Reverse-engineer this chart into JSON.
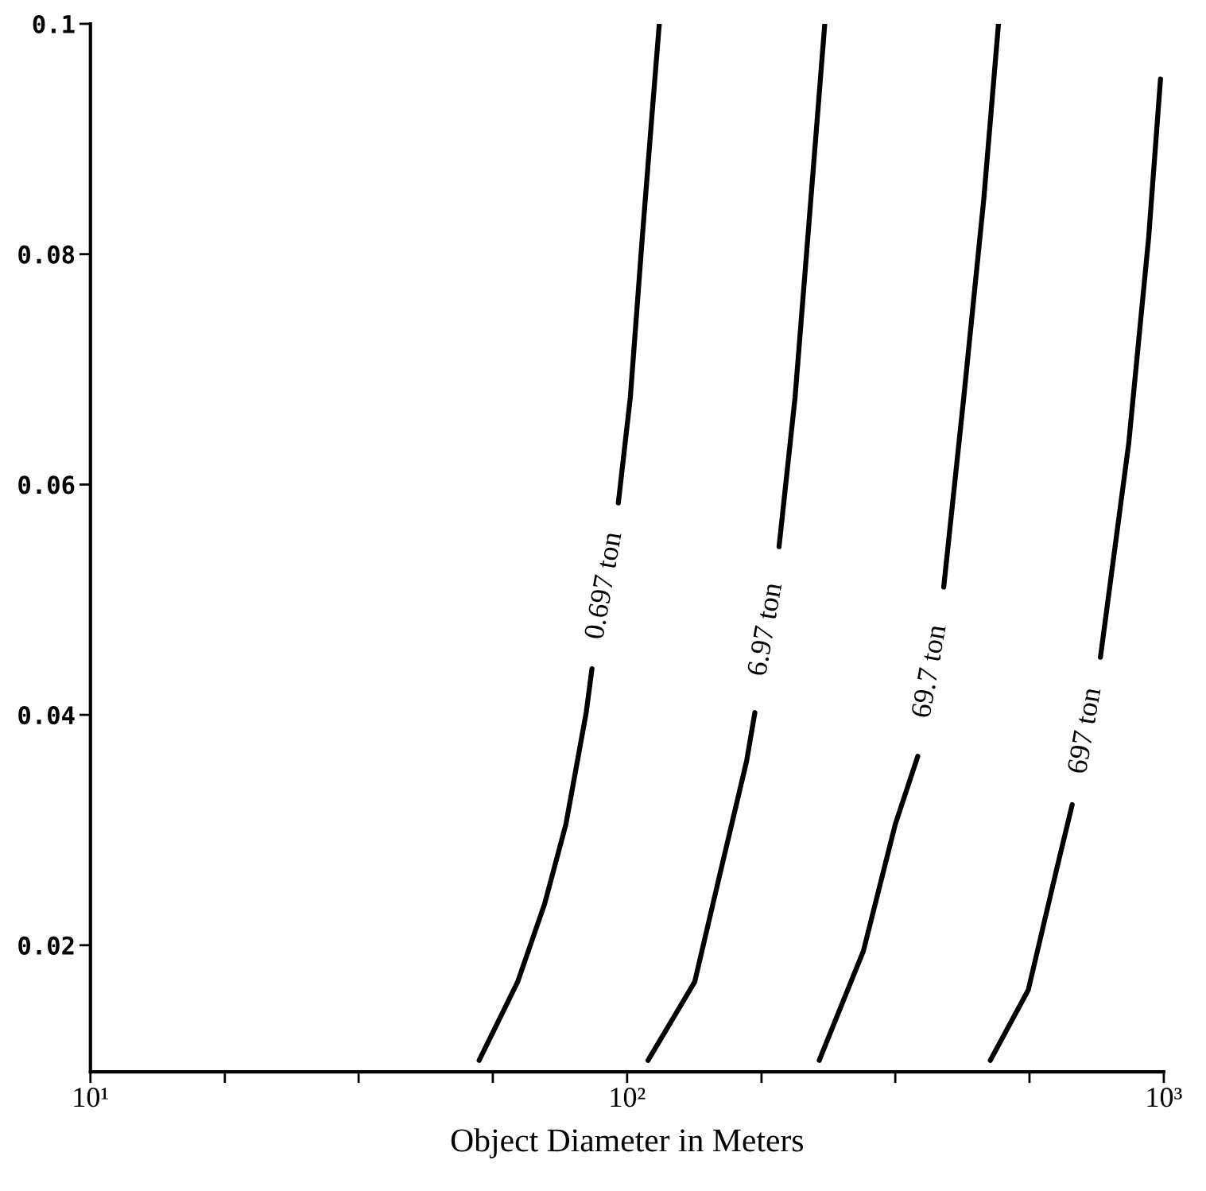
{
  "chart_data": {
    "type": "line",
    "xlabel": "Object Diameter in Meters",
    "log": "x",
    "xlim": [
      10,
      1000
    ],
    "ylim": [
      0.009,
      0.1
    ],
    "xticks": [
      {
        "value": 10,
        "label": "10¹"
      },
      {
        "value": 17.8,
        "label": null
      },
      {
        "value": 31.6,
        "label": null
      },
      {
        "value": 56.2,
        "label": null
      },
      {
        "value": 100,
        "label": "10²"
      },
      {
        "value": 178,
        "label": null
      },
      {
        "value": 316,
        "label": null
      },
      {
        "value": 562,
        "label": null
      },
      {
        "value": 1000,
        "label": "10³"
      }
    ],
    "yticks": [
      0.02,
      0.04,
      0.06,
      0.08,
      0.1
    ],
    "grid": false,
    "legend": false,
    "marker": "none",
    "line_style": "solid",
    "series": [
      {
        "name": "0.697 ton",
        "color": "#000000",
        "x": [
          53.0,
          62.5,
          70.2,
          76.9,
          83.9,
          86,
          91,
          96.3,
          101.4,
          106.7,
          111.7,
          114.8
        ],
        "values": [
          0.01,
          0.0168,
          0.0236,
          0.0305,
          0.0402,
          0.044,
          null,
          0.0584,
          0.0676,
          0.0814,
          0.0931,
          0.1
        ]
      },
      {
        "name": "6.97 ton",
        "color": "#000000",
        "x": [
          109.4,
          133.6,
          149.3,
          167,
          173,
          182,
          191.9,
          205.6,
          220,
          233.5
        ],
        "values": [
          0.01,
          0.0168,
          0.0264,
          0.036,
          0.0402,
          null,
          0.0546,
          0.0676,
          0.0848,
          0.1
        ]
      },
      {
        "name": "69.7 ton",
        "color": "#000000",
        "x": [
          228,
          275.6,
          316,
          348,
          368,
          389,
          424,
          462,
          492
        ],
        "values": [
          0.01,
          0.0195,
          0.0305,
          0.0364,
          null,
          0.0511,
          0.0676,
          0.0848,
          0.1
        ]
      },
      {
        "name": "697 ton",
        "color": "#000000",
        "x": [
          475,
          559,
          630,
          675,
          717,
          762,
          860,
          937,
          986
        ],
        "values": [
          0.01,
          0.0161,
          0.0264,
          0.0322,
          null,
          0.045,
          0.0635,
          0.0814,
          0.0952
        ]
      }
    ]
  }
}
